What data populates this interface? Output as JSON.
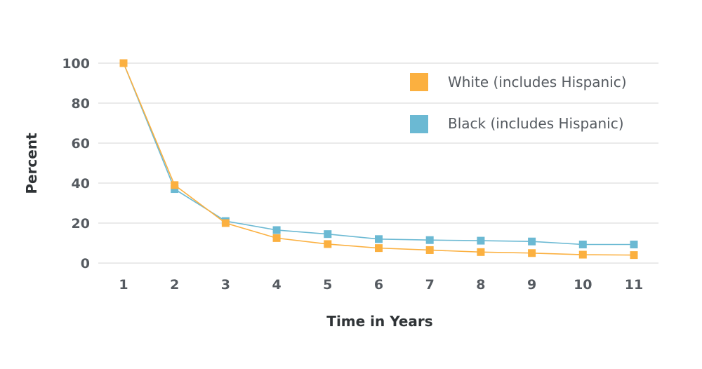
{
  "chart_data": {
    "type": "line",
    "x": [
      1,
      2,
      3,
      4,
      5,
      6,
      7,
      8,
      9,
      10,
      11
    ],
    "xlabel": "Time in Years",
    "ylabel": "Percent",
    "ylim": [
      0,
      100
    ],
    "yticks": [
      0,
      20,
      40,
      60,
      80,
      100
    ],
    "grid": true,
    "legend_position": "top-right",
    "series": [
      {
        "name": "White (includes Hispanic)",
        "color": "#fbb040",
        "marker": "square",
        "values": [
          100,
          39,
          20,
          12.5,
          9.5,
          7.5,
          6.5,
          5.5,
          5,
          4.2,
          4
        ]
      },
      {
        "name": "Black (includes Hispanic)",
        "color": "#6bb9d3",
        "marker": "square",
        "values": [
          100,
          37,
          21,
          16.5,
          14.5,
          12,
          11.5,
          11.2,
          10.8,
          9.3,
          9.3
        ]
      }
    ]
  }
}
